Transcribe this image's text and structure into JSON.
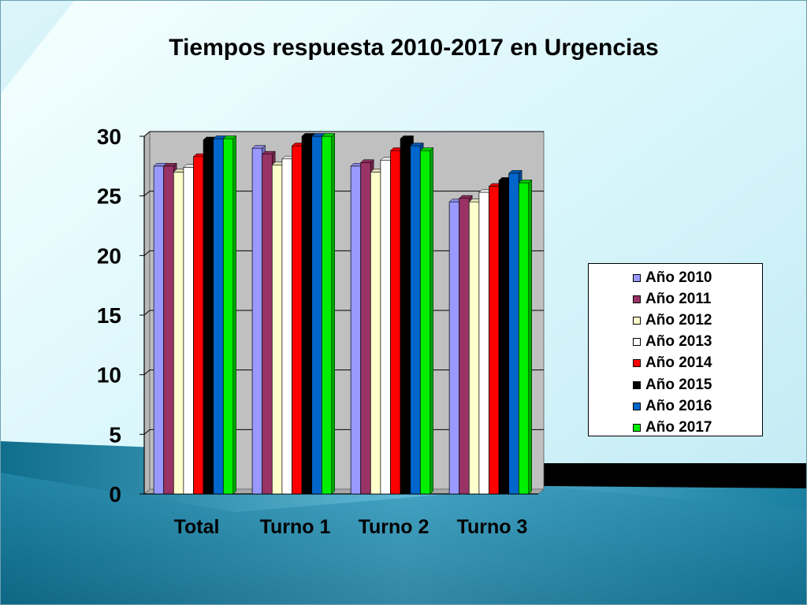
{
  "slide": {
    "title": "Tiempos respuesta 2010-2017 en Urgencias"
  },
  "chart_data": {
    "type": "bar",
    "title": "Tiempos respuesta 2010-2017 en Urgencias",
    "xlabel": "",
    "ylabel": "",
    "categories": [
      "Total",
      "Turno 1",
      "Turno 2",
      "Turno 3"
    ],
    "ylim": [
      0,
      30
    ],
    "yticks": [
      "0",
      "5",
      "10",
      "15",
      "20",
      "25",
      "30"
    ],
    "grid": true,
    "legend_position": "right",
    "series": [
      {
        "name": "Año 2010",
        "color": "#9999ff",
        "values": [
          27.5,
          29.0,
          27.5,
          24.5
        ]
      },
      {
        "name": "Año 2011",
        "color": "#993366",
        "values": [
          27.5,
          28.5,
          27.8,
          24.8
        ]
      },
      {
        "name": "Año 2012",
        "color": "#ffffcc",
        "values": [
          27.0,
          27.6,
          27.0,
          24.5
        ]
      },
      {
        "name": "Año 2013",
        "color": "#ffffff",
        "values": [
          27.4,
          28.1,
          28.0,
          25.3
        ]
      },
      {
        "name": "Año 2014",
        "color": "#ff0000",
        "values": [
          28.3,
          29.2,
          28.8,
          25.8
        ]
      },
      {
        "name": "Año 2015",
        "color": "#000000",
        "values": [
          29.7,
          30.0,
          29.8,
          26.3
        ]
      },
      {
        "name": "Año 2016",
        "color": "#0066cc",
        "values": [
          29.8,
          30.0,
          29.2,
          26.9
        ]
      },
      {
        "name": "Año 2017",
        "color": "#00ee00",
        "values": [
          29.8,
          30.0,
          28.8,
          26.1
        ]
      }
    ]
  }
}
